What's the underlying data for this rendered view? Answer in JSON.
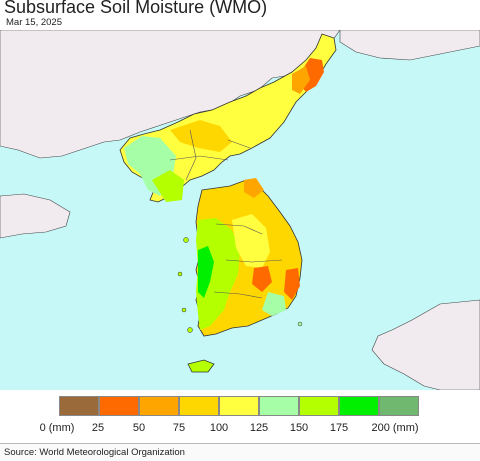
{
  "header": {
    "title": "Subsurface Soil Moisture (WMO)",
    "date": "Mar 15, 2025"
  },
  "map": {
    "water_color": "#c6f8f8",
    "foreign_land_color": "#f1ebef",
    "border_color": "#333333"
  },
  "legend": {
    "colors": [
      "#9b6a3a",
      "#ff6a00",
      "#ffa500",
      "#ffd700",
      "#ffff40",
      "#a6ffa6",
      "#b4ff00",
      "#00f000",
      "#70b870"
    ],
    "labels": [
      "0 (mm)",
      "25",
      "50",
      "75",
      "100",
      "125",
      "150",
      "175",
      "200 (mm)"
    ]
  },
  "footer": {
    "source": "Source: World Meteorological Organization"
  }
}
